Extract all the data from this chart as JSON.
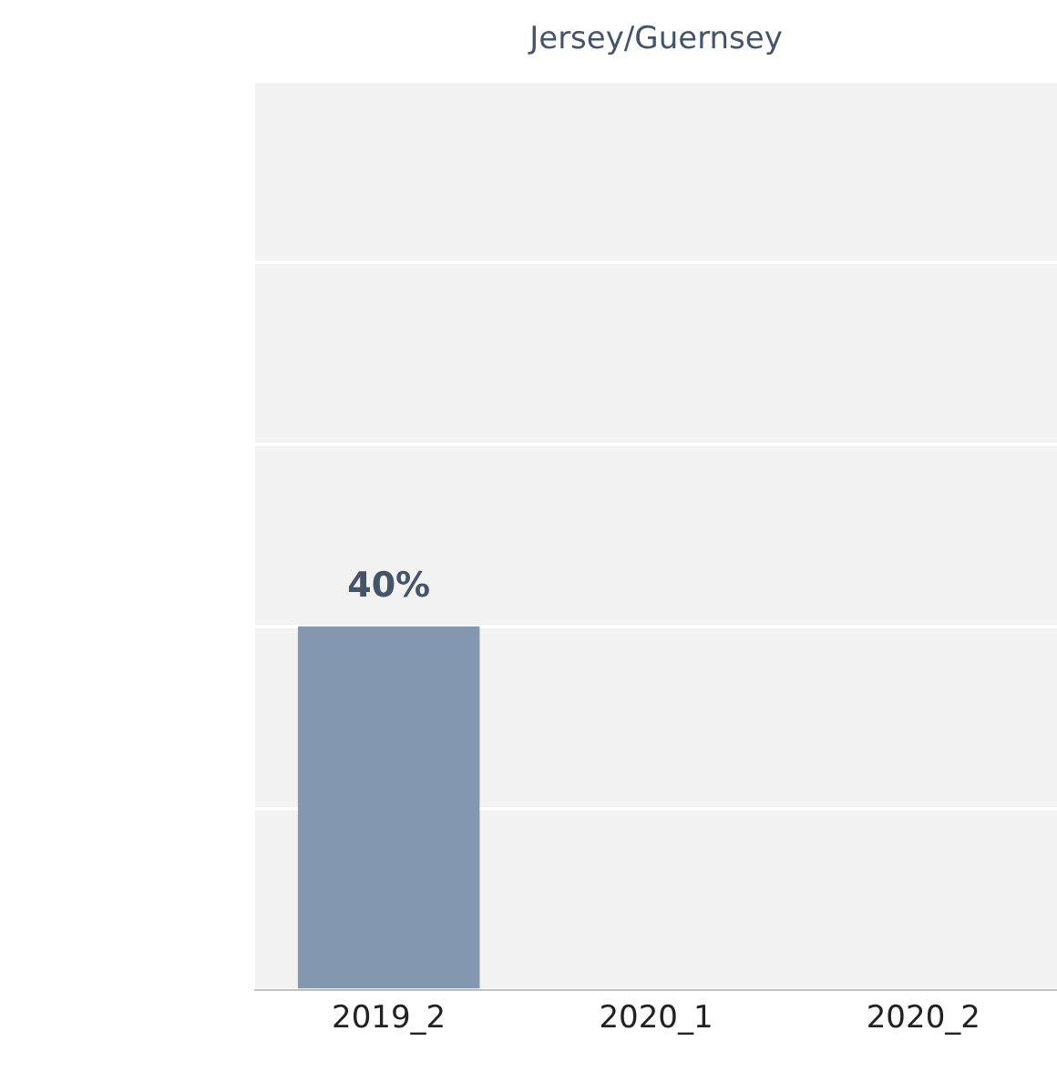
{
  "chart_data": {
    "type": "bar",
    "title": "Jersey/Guernsey",
    "categories": [
      "2019_2",
      "2020_1",
      "2020_2"
    ],
    "values": [
      40,
      null,
      null
    ],
    "value_labels": [
      "40%",
      null,
      null
    ],
    "color": "#8497b0",
    "ylim": [
      0,
      100
    ],
    "yticks": [
      {
        "value": 0,
        "label": null
      },
      {
        "value": 20,
        "label": null
      },
      {
        "value": 40,
        "label": null
      },
      {
        "value": 60,
        "label": null
      },
      {
        "value": 80,
        "label": null
      },
      {
        "value": 100,
        "label": null
      }
    ],
    "grid": "y",
    "tick_labels": "x"
  }
}
